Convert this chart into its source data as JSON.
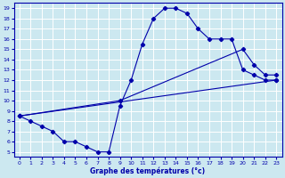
{
  "xlabel": "Graphe des températures (°c)",
  "bg_color": "#cce8f0",
  "grid_color": "#ffffff",
  "line_color": "#0000aa",
  "xlim": [
    -0.5,
    23.5
  ],
  "ylim": [
    4.5,
    19.5
  ],
  "xticks": [
    0,
    1,
    2,
    3,
    4,
    5,
    6,
    7,
    8,
    9,
    10,
    11,
    12,
    13,
    14,
    15,
    16,
    17,
    18,
    19,
    20,
    21,
    22,
    23
  ],
  "yticks": [
    5,
    6,
    7,
    8,
    9,
    10,
    11,
    12,
    13,
    14,
    15,
    16,
    17,
    18,
    19
  ],
  "line1_x": [
    0,
    1,
    2,
    3,
    4,
    5,
    6,
    7,
    8,
    9,
    10,
    11,
    12,
    13,
    14,
    15,
    16,
    17,
    18,
    19,
    20,
    21,
    22,
    23
  ],
  "line1_y": [
    8.5,
    8,
    7.5,
    7,
    6,
    6,
    5.5,
    5,
    5,
    9.5,
    12,
    15.5,
    18,
    19,
    19,
    18.5,
    17,
    16,
    16,
    16,
    13,
    12.5,
    12,
    12
  ],
  "line2_x": [
    0,
    9,
    20,
    21,
    22,
    23
  ],
  "line2_y": [
    8.5,
    10,
    15,
    13.5,
    12.5,
    12.5
  ],
  "line3_x": [
    0,
    23
  ],
  "line3_y": [
    8.5,
    12
  ]
}
